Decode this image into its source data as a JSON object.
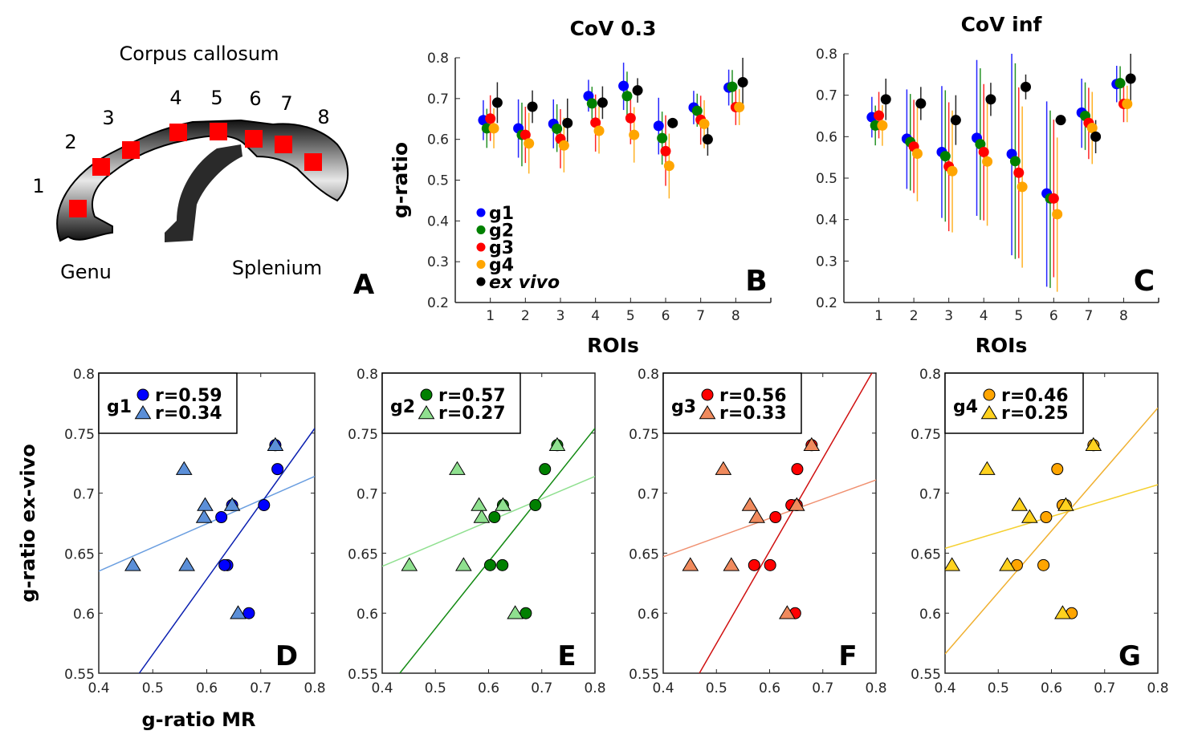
{
  "panel_a": {
    "title": "Corpus callosum",
    "roi_labels": [
      "1",
      "2",
      "3",
      "4",
      "5",
      "6",
      "7",
      "8"
    ],
    "genu_label": "Genu",
    "splenium_label": "Splenium",
    "panel_letter": "A",
    "roi_color": "#ff0000"
  },
  "colors": {
    "g1": "#0000ff",
    "g2": "#008000",
    "g3": "#ff0000",
    "g4": "#ffa500",
    "ex_vivo": "#000000",
    "g1_tri": "#5b8fd8",
    "g2_tri": "#8fe08f",
    "g3_tri": "#f08a5d",
    "g4_tri": "#ffd21f",
    "g1_line": "#0a1fb0",
    "g2_line": "#138a13",
    "g3_line": "#d01010",
    "g4_line": "#f0b030",
    "g1_tri_line": "#6a9ee0",
    "g2_tri_line": "#90e090",
    "g3_tri_line": "#f09070",
    "g4_tri_line": "#f5d030"
  },
  "chart_data": [
    {
      "id": "B",
      "type": "scatter",
      "title": "CoV 0.3",
      "xlabel": "ROIs",
      "ylabel": "g-ratio",
      "panel_letter": "B",
      "categories": [
        "1",
        "2",
        "3",
        "4",
        "5",
        "6",
        "7",
        "8"
      ],
      "xlim": [
        0,
        9
      ],
      "ylim": [
        0.2,
        0.8
      ],
      "yticks": [
        "0.2",
        "0.3",
        "0.4",
        "0.5",
        "0.6",
        "0.7",
        "0.8"
      ],
      "legend": [
        "g1",
        "g2",
        "g3",
        "g4",
        "ex vivo"
      ],
      "legend_position": "bottom-left",
      "series": [
        {
          "name": "g1",
          "values": [
            0.647,
            0.627,
            0.638,
            0.706,
            0.731,
            0.633,
            0.678,
            0.727
          ],
          "lower": [
            0.598,
            0.555,
            0.578,
            0.668,
            0.672,
            0.563,
            0.637,
            0.683
          ],
          "upper": [
            0.696,
            0.698,
            0.698,
            0.746,
            0.788,
            0.702,
            0.719,
            0.771
          ]
        },
        {
          "name": "g2",
          "values": [
            0.627,
            0.611,
            0.626,
            0.688,
            0.706,
            0.603,
            0.67,
            0.729
          ],
          "lower": [
            0.579,
            0.534,
            0.569,
            0.65,
            0.649,
            0.538,
            0.631,
            0.688
          ],
          "upper": [
            0.675,
            0.69,
            0.686,
            0.729,
            0.766,
            0.668,
            0.712,
            0.77
          ]
        },
        {
          "name": "g3",
          "values": [
            0.651,
            0.611,
            0.601,
            0.641,
            0.652,
            0.571,
            0.648,
            0.679
          ],
          "lower": [
            0.596,
            0.542,
            0.529,
            0.57,
            0.588,
            0.486,
            0.587,
            0.635
          ],
          "upper": [
            0.708,
            0.68,
            0.674,
            0.71,
            0.716,
            0.659,
            0.707,
            0.723
          ]
        },
        {
          "name": "g4",
          "values": [
            0.627,
            0.59,
            0.585,
            0.621,
            0.611,
            0.535,
            0.638,
            0.679
          ],
          "lower": [
            0.578,
            0.516,
            0.519,
            0.565,
            0.543,
            0.455,
            0.578,
            0.635
          ],
          "upper": [
            0.676,
            0.665,
            0.653,
            0.681,
            0.679,
            0.614,
            0.696,
            0.723
          ]
        },
        {
          "name": "ex vivo",
          "values": [
            0.69,
            0.68,
            0.64,
            0.69,
            0.72,
            0.64,
            0.6,
            0.74
          ],
          "lower": [
            0.64,
            0.64,
            0.58,
            0.65,
            0.69,
            0.64,
            0.56,
            0.68
          ],
          "upper": [
            0.74,
            0.72,
            0.7,
            0.73,
            0.75,
            0.64,
            0.64,
            0.8
          ]
        }
      ]
    },
    {
      "id": "C",
      "type": "scatter",
      "title": "CoV inf",
      "xlabel": "ROIs",
      "ylabel": "",
      "panel_letter": "C",
      "categories": [
        "1",
        "2",
        "3",
        "4",
        "5",
        "6",
        "7",
        "8"
      ],
      "xlim": [
        0,
        9
      ],
      "ylim": [
        0.2,
        0.8
      ],
      "yticks": [
        "0.2",
        "0.3",
        "0.4",
        "0.5",
        "0.6",
        "0.7",
        "0.8"
      ],
      "series": [
        {
          "name": "g1",
          "values": [
            0.647,
            0.595,
            0.563,
            0.597,
            0.558,
            0.463,
            0.658,
            0.727
          ],
          "lower": [
            0.598,
            0.474,
            0.404,
            0.409,
            0.314,
            0.238,
            0.573,
            0.683
          ],
          "upper": [
            0.696,
            0.714,
            0.722,
            0.785,
            0.8,
            0.685,
            0.74,
            0.771
          ]
        },
        {
          "name": "g2",
          "values": [
            0.627,
            0.587,
            0.553,
            0.582,
            0.541,
            0.451,
            0.65,
            0.729
          ],
          "lower": [
            0.579,
            0.47,
            0.395,
            0.399,
            0.305,
            0.235,
            0.568,
            0.688
          ],
          "upper": [
            0.675,
            0.703,
            0.712,
            0.765,
            0.777,
            0.663,
            0.731,
            0.77
          ]
        },
        {
          "name": "g3",
          "values": [
            0.651,
            0.576,
            0.528,
            0.563,
            0.513,
            0.451,
            0.633,
            0.679
          ],
          "lower": [
            0.596,
            0.464,
            0.372,
            0.398,
            0.307,
            0.261,
            0.546,
            0.635
          ],
          "upper": [
            0.708,
            0.689,
            0.683,
            0.727,
            0.719,
            0.641,
            0.718,
            0.723
          ]
        },
        {
          "name": "g4",
          "values": [
            0.627,
            0.559,
            0.517,
            0.54,
            0.479,
            0.413,
            0.621,
            0.679
          ],
          "lower": [
            0.578,
            0.444,
            0.369,
            0.385,
            0.284,
            0.226,
            0.534,
            0.635
          ],
          "upper": [
            0.676,
            0.674,
            0.663,
            0.69,
            0.673,
            0.598,
            0.708,
            0.723
          ]
        },
        {
          "name": "ex vivo",
          "values": [
            0.69,
            0.68,
            0.64,
            0.69,
            0.72,
            0.64,
            0.6,
            0.74
          ],
          "lower": [
            0.64,
            0.64,
            0.58,
            0.65,
            0.69,
            0.64,
            0.56,
            0.68
          ],
          "upper": [
            0.74,
            0.72,
            0.7,
            0.73,
            0.75,
            0.64,
            0.64,
            0.8
          ]
        }
      ]
    },
    {
      "id": "D",
      "type": "scatter",
      "panel_letter": "D",
      "group": "g1",
      "xlabel": "g-ratio MR",
      "ylabel": "g-ratio ex-vivo",
      "xlim": [
        0.4,
        0.8
      ],
      "ylim": [
        0.55,
        0.8
      ],
      "xticks": [
        "0.4",
        "0.5",
        "0.6",
        "0.7",
        "0.8"
      ],
      "yticks": [
        "0.55",
        "0.6",
        "0.65",
        "0.7",
        "0.75",
        "0.8"
      ],
      "legend_position": "top-left",
      "circles": {
        "label": "r=0.59",
        "points": [
          [
            0.647,
            0.69
          ],
          [
            0.627,
            0.68
          ],
          [
            0.638,
            0.64
          ],
          [
            0.706,
            0.69
          ],
          [
            0.731,
            0.72
          ],
          [
            0.633,
            0.64
          ],
          [
            0.678,
            0.6
          ],
          [
            0.727,
            0.74
          ]
        ],
        "fit": [
          [
            0.475,
            0.55
          ],
          [
            0.8,
            0.754
          ]
        ]
      },
      "triangles": {
        "label": "r=0.34",
        "points": [
          [
            0.647,
            0.69
          ],
          [
            0.595,
            0.68
          ],
          [
            0.563,
            0.64
          ],
          [
            0.597,
            0.69
          ],
          [
            0.558,
            0.72
          ],
          [
            0.463,
            0.64
          ],
          [
            0.658,
            0.6
          ],
          [
            0.727,
            0.74
          ]
        ],
        "fit": [
          [
            0.4,
            0.635
          ],
          [
            0.8,
            0.714
          ]
        ]
      }
    },
    {
      "id": "E",
      "type": "scatter",
      "panel_letter": "E",
      "group": "g2",
      "xlim": [
        0.4,
        0.8
      ],
      "ylim": [
        0.55,
        0.8
      ],
      "xticks": [
        "0.4",
        "0.5",
        "0.6",
        "0.7",
        "0.8"
      ],
      "yticks": [
        "0.55",
        "0.6",
        "0.65",
        "0.7",
        "0.75",
        "0.8"
      ],
      "circles": {
        "label": "r=0.57",
        "points": [
          [
            0.627,
            0.69
          ],
          [
            0.611,
            0.68
          ],
          [
            0.626,
            0.64
          ],
          [
            0.688,
            0.69
          ],
          [
            0.706,
            0.72
          ],
          [
            0.603,
            0.64
          ],
          [
            0.67,
            0.6
          ],
          [
            0.729,
            0.74
          ]
        ],
        "fit": [
          [
            0.433,
            0.55
          ],
          [
            0.8,
            0.754
          ]
        ]
      },
      "triangles": {
        "label": "r=0.27",
        "points": [
          [
            0.627,
            0.69
          ],
          [
            0.587,
            0.68
          ],
          [
            0.553,
            0.64
          ],
          [
            0.582,
            0.69
          ],
          [
            0.541,
            0.72
          ],
          [
            0.451,
            0.64
          ],
          [
            0.65,
            0.6
          ],
          [
            0.729,
            0.74
          ]
        ],
        "fit": [
          [
            0.4,
            0.639
          ],
          [
            0.8,
            0.714
          ]
        ]
      }
    },
    {
      "id": "F",
      "type": "scatter",
      "panel_letter": "F",
      "group": "g3",
      "xlim": [
        0.4,
        0.8
      ],
      "ylim": [
        0.55,
        0.8
      ],
      "xticks": [
        "0.4",
        "0.5",
        "0.6",
        "0.7",
        "0.8"
      ],
      "yticks": [
        "0.55",
        "0.6",
        "0.65",
        "0.7",
        "0.75",
        "0.8"
      ],
      "circles": {
        "label": "r=0.56",
        "points": [
          [
            0.651,
            0.69
          ],
          [
            0.611,
            0.68
          ],
          [
            0.601,
            0.64
          ],
          [
            0.641,
            0.69
          ],
          [
            0.652,
            0.72
          ],
          [
            0.571,
            0.64
          ],
          [
            0.648,
            0.6
          ],
          [
            0.679,
            0.74
          ]
        ],
        "fit": [
          [
            0.468,
            0.55
          ],
          [
            0.8,
            0.806
          ]
        ]
      },
      "triangles": {
        "label": "r=0.33",
        "points": [
          [
            0.651,
            0.69
          ],
          [
            0.576,
            0.68
          ],
          [
            0.528,
            0.64
          ],
          [
            0.563,
            0.69
          ],
          [
            0.513,
            0.72
          ],
          [
            0.451,
            0.64
          ],
          [
            0.633,
            0.6
          ],
          [
            0.679,
            0.74
          ]
        ],
        "fit": [
          [
            0.4,
            0.647
          ],
          [
            0.8,
            0.711
          ]
        ]
      }
    },
    {
      "id": "G",
      "type": "scatter",
      "panel_letter": "G",
      "group": "g4",
      "xlim": [
        0.4,
        0.8
      ],
      "ylim": [
        0.55,
        0.8
      ],
      "xticks": [
        "0.4",
        "0.5",
        "0.6",
        "0.7",
        "0.8"
      ],
      "yticks": [
        "0.55",
        "0.6",
        "0.65",
        "0.7",
        "0.75",
        "0.8"
      ],
      "circles": {
        "label": "r=0.46",
        "points": [
          [
            0.627,
            0.69
          ],
          [
            0.59,
            0.68
          ],
          [
            0.585,
            0.64
          ],
          [
            0.621,
            0.69
          ],
          [
            0.611,
            0.72
          ],
          [
            0.535,
            0.64
          ],
          [
            0.638,
            0.6
          ],
          [
            0.679,
            0.74
          ]
        ],
        "fit": [
          [
            0.4,
            0.566
          ],
          [
            0.8,
            0.771
          ]
        ]
      },
      "triangles": {
        "label": "r=0.25",
        "points": [
          [
            0.627,
            0.69
          ],
          [
            0.559,
            0.68
          ],
          [
            0.517,
            0.64
          ],
          [
            0.54,
            0.69
          ],
          [
            0.479,
            0.72
          ],
          [
            0.413,
            0.64
          ],
          [
            0.621,
            0.6
          ],
          [
            0.679,
            0.74
          ]
        ],
        "fit": [
          [
            0.4,
            0.654
          ],
          [
            0.8,
            0.707
          ]
        ]
      }
    }
  ]
}
